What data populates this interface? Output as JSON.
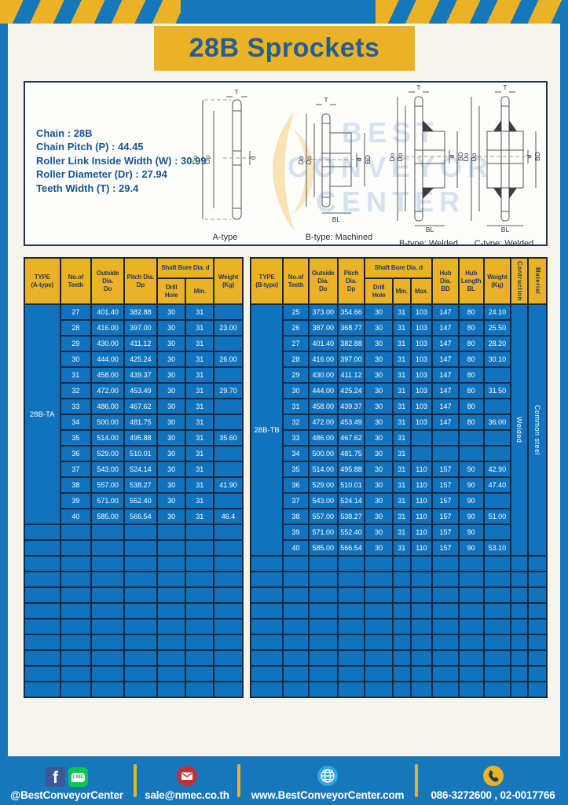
{
  "title": "28B Sprockets",
  "specs": {
    "text": "Chain : 28B\nChain Pitch (P) : 44.45\nRoller Link Inside Width (W) : 30.99\nRoller Diameter (Dr) : 27.94\nTeeth Width (T) : 29.4"
  },
  "drawings": {
    "watermark": "BEST\nCONVEYOR\nCENTER",
    "captions": [
      "A-type",
      "B-type: Machined",
      "B-type: Welded",
      "C-type: Welded"
    ],
    "labels": {
      "t": "T",
      "do": "Do",
      "dp": "Dp",
      "d": "d",
      "bd": "BD",
      "bl": "BL"
    }
  },
  "table_a": {
    "headers": [
      "TYPE\n(A-type)",
      "No.of\nTeeth",
      "Outside\nDia.\nDo",
      "Pitch Dia.\nDp",
      "Shaft Bore Dia. d",
      "Drill Hole",
      "Min.",
      "Weight\n(Kg)"
    ],
    "type_label": "28B-TA",
    "rows": [
      [
        "27",
        "401.40",
        "382.88",
        "30",
        "31",
        ""
      ],
      [
        "28",
        "416.00",
        "397.00",
        "30",
        "31",
        "23.00"
      ],
      [
        "29",
        "430.00",
        "411.12",
        "30",
        "31",
        ""
      ],
      [
        "30",
        "444.00",
        "425.24",
        "30",
        "31",
        "26.00"
      ],
      [
        "31",
        "458.00",
        "439.37",
        "30",
        "31",
        ""
      ],
      [
        "32",
        "472.00",
        "453.49",
        "30",
        "31",
        "29.70"
      ],
      [
        "33",
        "486.00",
        "467.62",
        "30",
        "31",
        ""
      ],
      [
        "34",
        "500.00",
        "481.75",
        "30",
        "31",
        ""
      ],
      [
        "35",
        "514.00",
        "495.88",
        "30",
        "31",
        "35.60"
      ],
      [
        "36",
        "529.00",
        "510.01",
        "30",
        "31",
        ""
      ],
      [
        "37",
        "543.00",
        "524.14",
        "30",
        "31",
        ""
      ],
      [
        "38",
        "557.00",
        "538.27",
        "30",
        "31",
        "41.90"
      ],
      [
        "39",
        "571.00",
        "552.40",
        "30",
        "31",
        ""
      ],
      [
        "40",
        "585.00",
        "566.54",
        "30",
        "31",
        "46.4"
      ]
    ],
    "empty_rows": 11
  },
  "table_b": {
    "headers": [
      "TYPE\n(B-type)",
      "No.of\nTeeth",
      "Outside\nDia.\nDo",
      "Pitch Dia.\nDp",
      "Shaft Bore Dia. d",
      "Drill Hole",
      "Min.",
      "Max.",
      "Hub Dia.\nBD",
      "Hub\nLength\nBL",
      "Weight\n(Kg)",
      "Contruction",
      "Material"
    ],
    "type_label": "28B-TB",
    "merged": [
      "Welded",
      "Common steel"
    ],
    "rows": [
      [
        "25",
        "373.00",
        "354.66",
        "30",
        "31",
        "103",
        "147",
        "80",
        "24.10"
      ],
      [
        "26",
        "387.00",
        "368.77",
        "30",
        "31",
        "103",
        "147",
        "80",
        "25.50"
      ],
      [
        "27",
        "401.40",
        "382.88",
        "30",
        "31",
        "103",
        "147",
        "80",
        "28.20"
      ],
      [
        "28",
        "416.00",
        "397.00",
        "30",
        "31",
        "103",
        "147",
        "80",
        "30.10"
      ],
      [
        "29",
        "430.00",
        "411.12",
        "30",
        "31",
        "103",
        "147",
        "80",
        ""
      ],
      [
        "30",
        "444.00",
        "425.24",
        "30",
        "31",
        "103",
        "147",
        "80",
        "31.50"
      ],
      [
        "31",
        "458.00",
        "439.37",
        "30",
        "31",
        "103",
        "147",
        "80",
        ""
      ],
      [
        "32",
        "472.00",
        "453.49",
        "30",
        "31",
        "103",
        "147",
        "80",
        "36.00"
      ],
      [
        "33",
        "486.00",
        "467.62",
        "30",
        "31",
        "",
        "",
        "",
        ""
      ],
      [
        "34",
        "500.00",
        "481.75",
        "30",
        "31",
        "",
        "",
        "",
        ""
      ],
      [
        "35",
        "514.00",
        "495.88",
        "30",
        "31",
        "110",
        "157",
        "90",
        "42.90"
      ],
      [
        "36",
        "529.00",
        "510.01",
        "30",
        "31",
        "110",
        "157",
        "90",
        "47.40"
      ],
      [
        "37",
        "543.00",
        "524.14",
        "30",
        "31",
        "110",
        "157",
        "90",
        ""
      ],
      [
        "38",
        "557.00",
        "538.27",
        "30",
        "31",
        "110",
        "157",
        "90",
        "51.00"
      ],
      [
        "39",
        "571.00",
        "552.40",
        "30",
        "31",
        "110",
        "157",
        "90",
        ""
      ],
      [
        "40",
        "585.00",
        "566.54",
        "30",
        "31",
        "110",
        "157",
        "90",
        "53.10"
      ]
    ],
    "empty_rows": 9
  },
  "footer": {
    "items": [
      {
        "label": "@BestConveyorCenter"
      },
      {
        "label": "sale@nmec.co.th"
      },
      {
        "label": "www.BestConveyorCenter.com"
      },
      {
        "label": "086-3272600 , 02-0017766"
      }
    ],
    "facebook_glyph": "f",
    "line_glyph": "LINE"
  },
  "colors": {
    "frame_blue": "#1777bb",
    "cell_blue": "#1173bd",
    "header_yellow": "#ecb226",
    "grid_navy": "#15283d",
    "title_navy": "#235e93",
    "spec_blue": "#17568f"
  }
}
